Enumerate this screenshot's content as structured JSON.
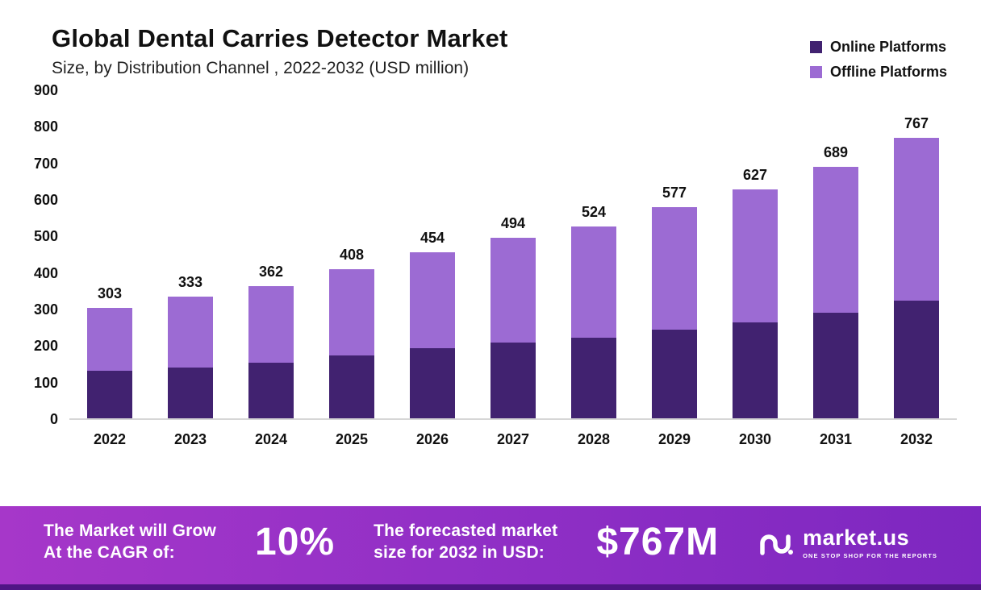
{
  "header": {
    "title": "Global Dental Carries Detector  Market",
    "subtitle": "Size, by Distribution Channel , 2022-2032 (USD million)"
  },
  "legend": [
    {
      "label": "Online Platforms",
      "color": "#412270"
    },
    {
      "label": "Offline Platforms",
      "color": "#9c6bd3"
    }
  ],
  "chart_data": {
    "type": "bar",
    "stacked": true,
    "title": "Global Dental Carries Detector Market Size, by Distribution Channel, 2022-2032 (USD million)",
    "categories": [
      "2022",
      "2023",
      "2024",
      "2025",
      "2026",
      "2027",
      "2028",
      "2029",
      "2030",
      "2031",
      "2032"
    ],
    "series": [
      {
        "name": "Online Platforms",
        "color": "#412270",
        "values": [
          130,
          140,
          153,
          172,
          192,
          207,
          220,
          242,
          263,
          290,
          322
        ]
      },
      {
        "name": "Offline Platforms",
        "color": "#9c6bd3",
        "values": [
          173,
          193,
          209,
          236,
          262,
          287,
          304,
          335,
          364,
          399,
          445
        ]
      }
    ],
    "totals": [
      303,
      333,
      362,
      408,
      454,
      494,
      524,
      577,
      627,
      689,
      767
    ],
    "xlabel": "",
    "ylabel": "",
    "ylim": [
      0,
      900
    ],
    "yticks": [
      900,
      800,
      700,
      600,
      500,
      400,
      300,
      200,
      100,
      0
    ],
    "grid": false,
    "legend_position": "top-right"
  },
  "banner": {
    "cagr_label_1": "The Market will Grow",
    "cagr_label_2": "At the CAGR of:",
    "cagr_value": "10%",
    "forecast_label_1": "The forecasted market",
    "forecast_label_2": "size for 2032 in USD:",
    "forecast_value": "$767M",
    "logo_text": "market.us",
    "logo_tagline": "ONE STOP SHOP FOR THE REPORTS"
  }
}
